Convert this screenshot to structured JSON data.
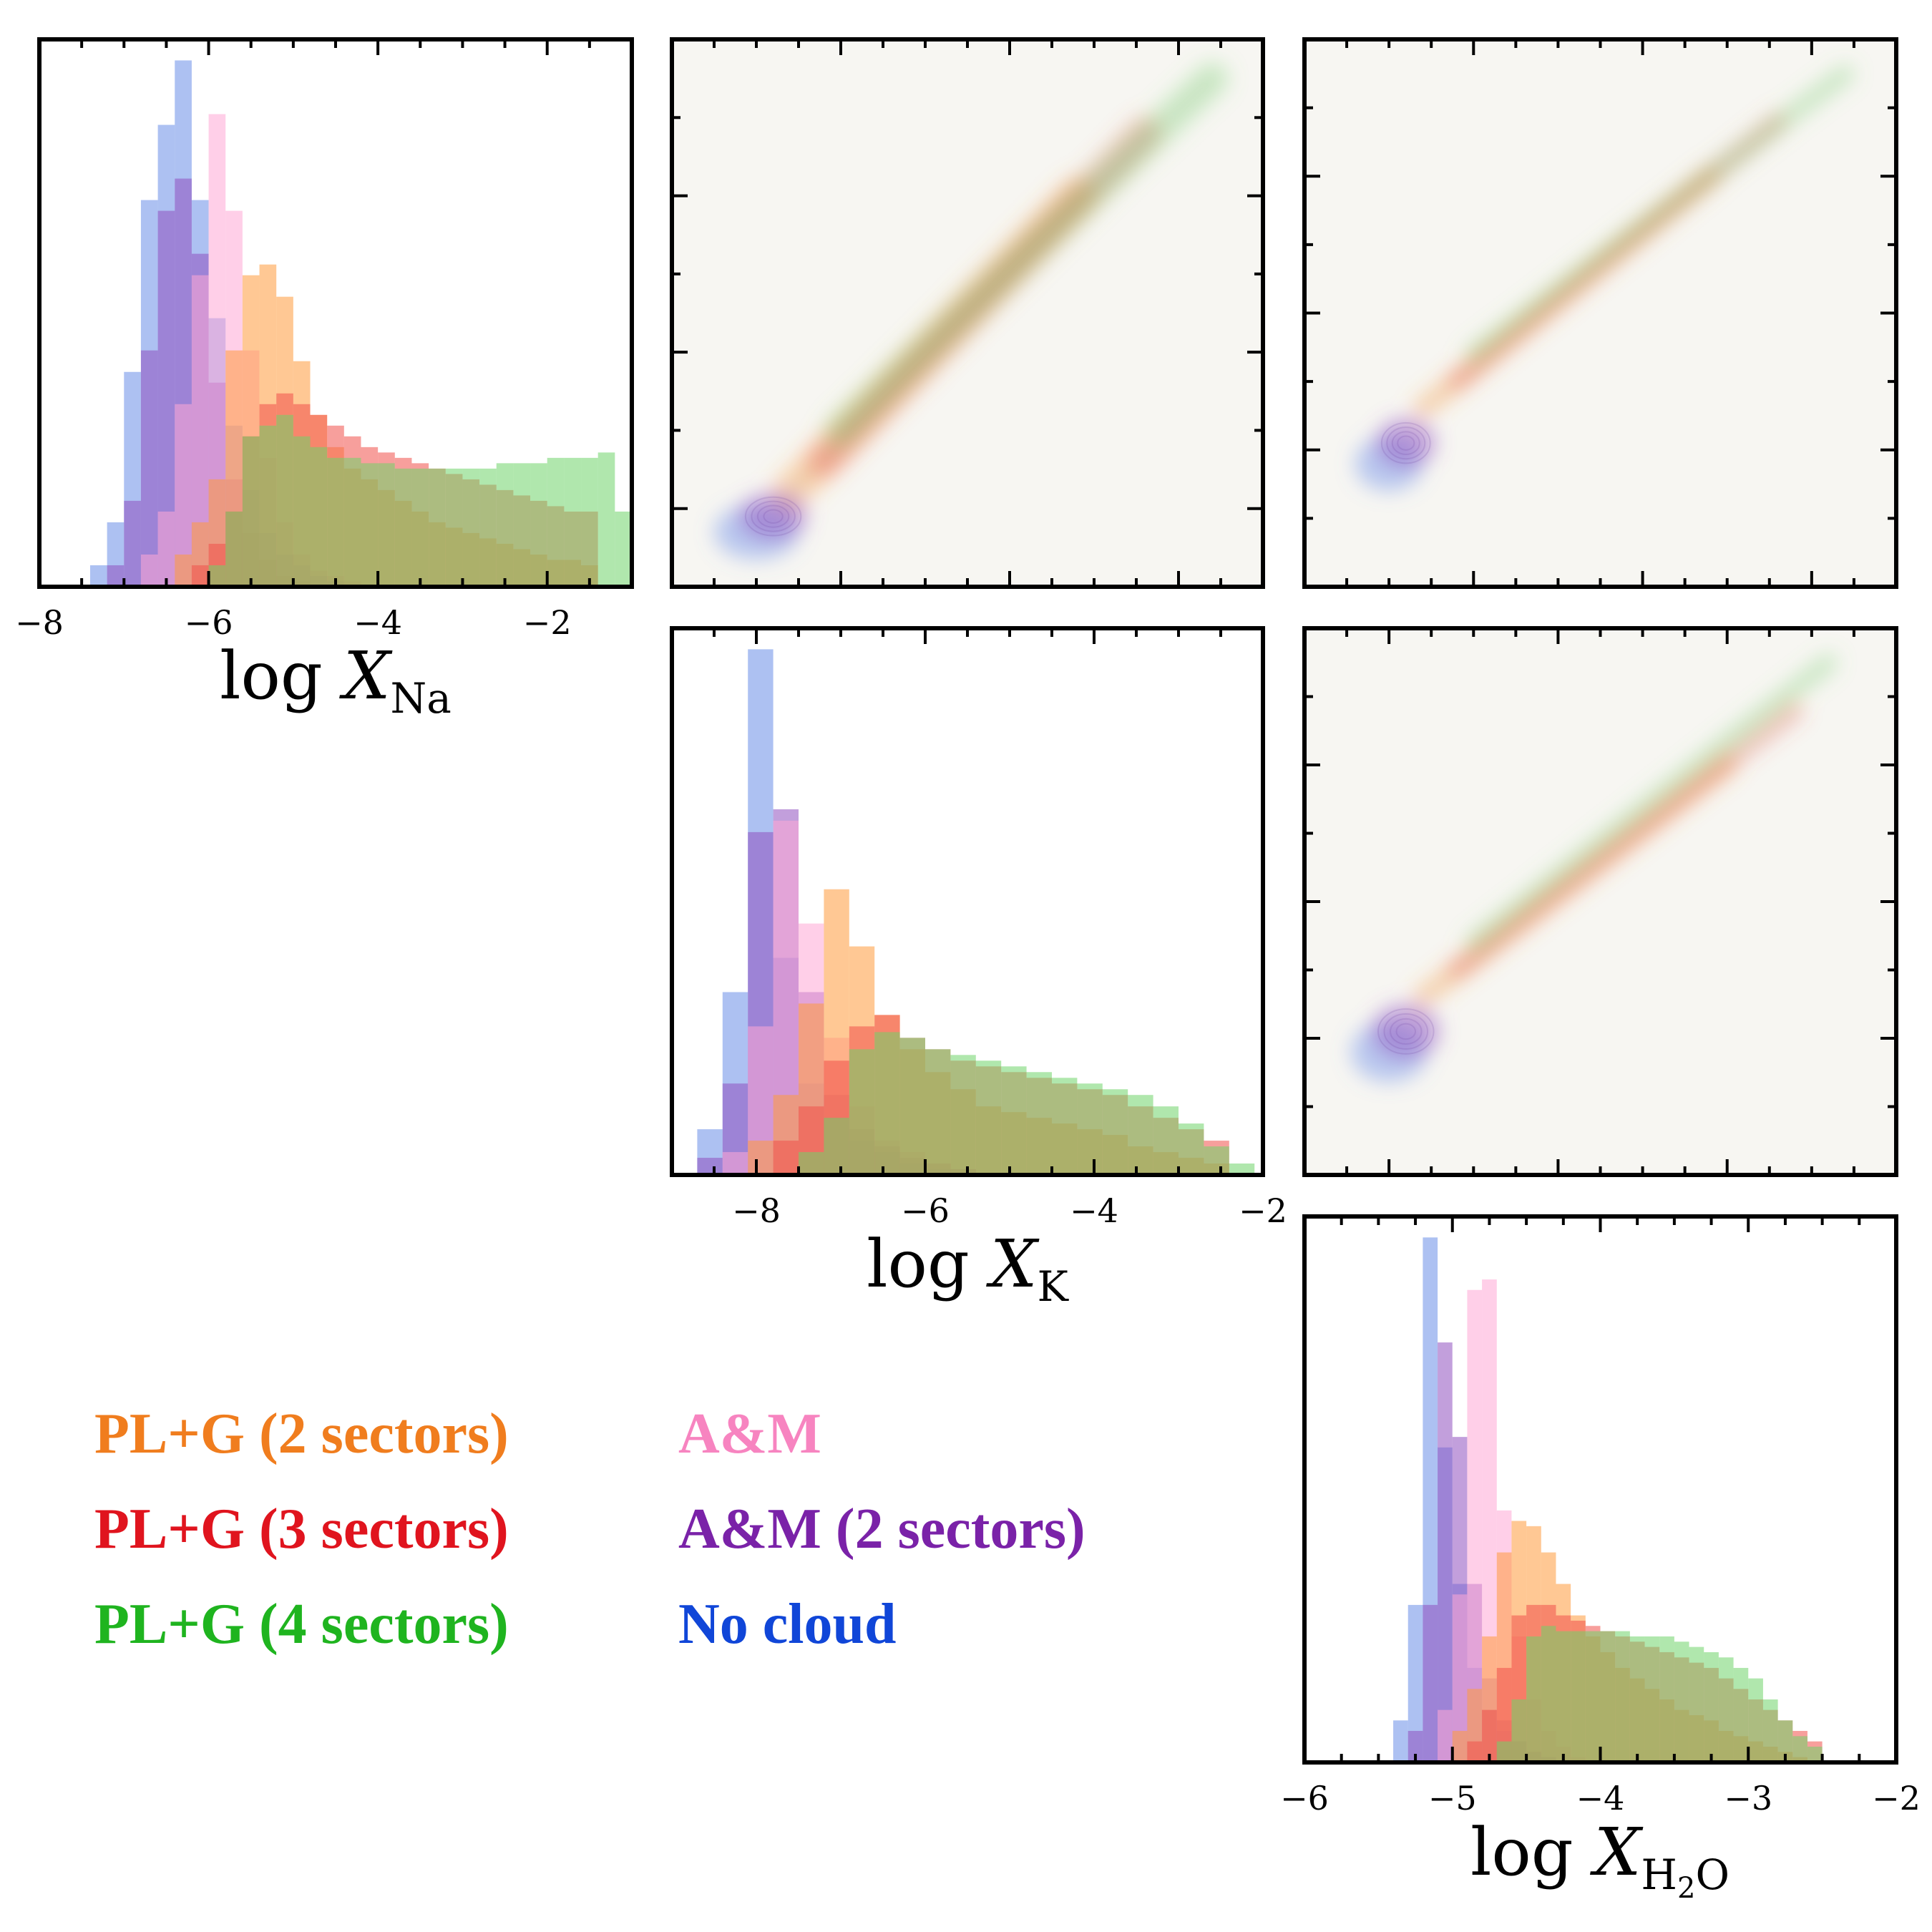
{
  "colors": {
    "pl_g_2": "#ff9a3c",
    "pl_g_3": "#f0504a",
    "pl_g_4": "#6fd46a",
    "am": "#ffa8d6",
    "am_2": "#9050c0",
    "no_cloud": "#6a8ee8",
    "legend_pl_g_2": "#f07d1e",
    "legend_pl_g_3": "#e0141e",
    "legend_pl_g_4": "#1fb41f",
    "legend_am": "#f784c0",
    "legend_am_2": "#7a22a8",
    "legend_no_cloud": "#1046d8",
    "panel_bg": "#f7f6f2"
  },
  "legend": [
    {
      "key": "pl_g_2",
      "label": "PL+G (2 sectors)"
    },
    {
      "key": "pl_g_3",
      "label": "PL+G (3 sectors)"
    },
    {
      "key": "pl_g_4",
      "label": "PL+G (4 sectors)"
    },
    {
      "key": "am",
      "label": "A&M"
    },
    {
      "key": "am_2",
      "label": "A&M (2 sectors)"
    },
    {
      "key": "no_cloud",
      "label": "No cloud"
    }
  ],
  "axis_labels": {
    "na": {
      "prefix": "log ",
      "var": "X",
      "sub": "Na"
    },
    "k": {
      "prefix": "log ",
      "var": "X",
      "sub": "K"
    },
    "h2o": {
      "prefix": "log ",
      "var": "X",
      "sub_a": "H",
      "sub_b": "2",
      "sub_c": "O"
    }
  },
  "chart_data": [
    {
      "type": "histogram",
      "id": "na",
      "xlabel": "log X_Na",
      "xlim": [
        -8.0,
        -1.0
      ],
      "xticks": [
        -8,
        -6,
        -4,
        -2
      ],
      "xtick_labels": [
        "−8",
        "−6",
        "−4",
        "−2"
      ],
      "series": [
        {
          "key": "no_cloud",
          "x0": -7.4,
          "width": 0.2,
          "values": [
            4,
            12,
            40,
            72,
            86,
            98,
            72,
            50,
            30,
            18,
            10,
            6,
            4,
            2,
            1
          ]
        },
        {
          "key": "am_2",
          "x0": -7.2,
          "width": 0.2,
          "values": [
            4,
            16,
            44,
            70,
            76,
            62,
            38,
            20,
            10,
            5,
            2,
            1
          ]
        },
        {
          "key": "am",
          "x0": -6.8,
          "width": 0.2,
          "values": [
            6,
            14,
            34,
            58,
            88,
            70,
            44,
            24,
            12,
            6,
            3,
            2,
            1
          ]
        },
        {
          "key": "pl_g_2",
          "x0": -6.4,
          "width": 0.2,
          "values": [
            6,
            12,
            20,
            44,
            58,
            60,
            54,
            42,
            32,
            26,
            22,
            20,
            18,
            16,
            14,
            12,
            11,
            10,
            9,
            8,
            7,
            6,
            5,
            5,
            4
          ]
        },
        {
          "key": "pl_g_3",
          "x0": -6.2,
          "width": 0.2,
          "values": [
            4,
            8,
            14,
            28,
            34,
            36,
            34,
            32,
            30,
            28,
            26,
            25,
            24,
            23,
            22,
            21,
            20,
            19,
            18,
            17,
            16,
            15,
            14,
            14
          ]
        },
        {
          "key": "pl_g_4",
          "x0": -6.0,
          "width": 0.2,
          "values": [
            4,
            14,
            28,
            30,
            32,
            28,
            26,
            24,
            24,
            23,
            23,
            22,
            22,
            22,
            22,
            22,
            22,
            23,
            23,
            23,
            24,
            24,
            24,
            25,
            14
          ]
        }
      ]
    },
    {
      "type": "histogram",
      "id": "k",
      "xlabel": "log X_K",
      "xlim": [
        -9.0,
        -2.0
      ],
      "xticks": [
        -8,
        -6,
        -4,
        -2
      ],
      "xtick_labels": [
        "−8",
        "−6",
        "−4",
        "−2"
      ],
      "series": [
        {
          "key": "no_cloud",
          "x0": -8.7,
          "width": 0.3,
          "values": [
            8,
            32,
            92,
            38,
            16,
            10,
            6,
            4,
            2,
            1,
            1
          ]
        },
        {
          "key": "am_2",
          "x0": -8.7,
          "width": 0.3,
          "values": [
            3,
            16,
            60,
            64,
            32,
            14,
            8,
            5,
            3,
            2,
            1
          ]
        },
        {
          "key": "am",
          "x0": -8.4,
          "width": 0.3,
          "values": [
            4,
            26,
            62,
            44,
            24,
            12,
            6,
            4,
            2,
            1
          ]
        },
        {
          "key": "pl_g_2",
          "x0": -8.1,
          "width": 0.3,
          "values": [
            6,
            14,
            30,
            50,
            40,
            28,
            22,
            18,
            15,
            12,
            11,
            10,
            9,
            8,
            7,
            5,
            4,
            3,
            2
          ]
        },
        {
          "key": "pl_g_3",
          "x0": -7.8,
          "width": 0.3,
          "values": [
            6,
            12,
            20,
            26,
            28,
            24,
            22,
            20,
            19,
            18,
            17,
            16,
            15,
            14,
            12,
            10,
            8,
            6
          ]
        },
        {
          "key": "pl_g_4",
          "x0": -7.5,
          "width": 0.3,
          "values": [
            4,
            10,
            22,
            25,
            24,
            22,
            21,
            20,
            19,
            18,
            17,
            16,
            15,
            14,
            12,
            9,
            5,
            2
          ]
        }
      ]
    },
    {
      "type": "histogram",
      "id": "h2o",
      "xlabel": "log X_H2O",
      "xlim": [
        -6.0,
        -2.0
      ],
      "xticks": [
        -6,
        -5,
        -4,
        -3,
        -2
      ],
      "xtick_labels": [
        "−6",
        "−5",
        "−4",
        "−3",
        "−2"
      ],
      "series": [
        {
          "key": "no_cloud",
          "x0": -5.4,
          "width": 0.1,
          "values": [
            8,
            30,
            100,
            60,
            34,
            18,
            10,
            6,
            4,
            2,
            1
          ]
        },
        {
          "key": "am_2",
          "x0": -5.3,
          "width": 0.1,
          "values": [
            6,
            30,
            80,
            62,
            34,
            16,
            8,
            4,
            2,
            1
          ]
        },
        {
          "key": "am",
          "x0": -5.1,
          "width": 0.1,
          "values": [
            10,
            32,
            90,
            92,
            48,
            24,
            12,
            6,
            3,
            1
          ]
        },
        {
          "key": "pl_g_2",
          "x0": -5.0,
          "width": 0.1,
          "values": [
            6,
            14,
            24,
            40,
            46,
            45,
            40,
            34,
            28,
            24,
            21,
            18,
            16,
            14,
            12,
            10,
            9,
            8,
            6,
            5,
            4,
            3,
            2,
            1
          ]
        },
        {
          "key": "pl_g_3",
          "x0": -4.9,
          "width": 0.1,
          "values": [
            4,
            10,
            18,
            28,
            30,
            30,
            28,
            27,
            26,
            25,
            24,
            23,
            22,
            21,
            20,
            19,
            18,
            16,
            14,
            12,
            10,
            8,
            6,
            4
          ]
        },
        {
          "key": "pl_g_4",
          "x0": -4.7,
          "width": 0.1,
          "values": [
            4,
            12,
            24,
            26,
            25,
            25,
            25,
            25,
            25,
            24,
            24,
            24,
            23,
            22,
            21,
            20,
            18,
            16,
            12,
            8,
            5,
            3
          ]
        }
      ]
    },
    {
      "type": "contour",
      "id": "na_k",
      "description_x": "log X_Na",
      "description_y": "log X_K",
      "xlim": [
        -8.0,
        -1.0
      ],
      "ylim": [
        -9.0,
        -2.0
      ],
      "blobs": [
        {
          "key": "no_cloud",
          "x": -7.0,
          "y": -8.3,
          "sx": 0.5,
          "sy": 0.35,
          "a": 0.45
        },
        {
          "key": "am_2",
          "x": -6.8,
          "y": -8.1,
          "sx": 0.4,
          "sy": 0.3,
          "a": 0.5
        }
      ],
      "ridges": [
        {
          "key": "pl_g_2",
          "x1": -6.6,
          "y1": -7.8,
          "x2": -3.2,
          "y2": -4.0,
          "w": 0.45,
          "a": 0.35
        },
        {
          "key": "pl_g_3",
          "x1": -6.2,
          "y1": -7.4,
          "x2": -2.4,
          "y2": -3.2,
          "w": 0.4,
          "a": 0.3
        },
        {
          "key": "pl_g_4",
          "x1": -6.0,
          "y1": -7.0,
          "x2": -1.6,
          "y2": -2.5,
          "w": 0.4,
          "a": 0.3
        }
      ]
    },
    {
      "type": "contour",
      "id": "na_h2o",
      "description_x": "log X_Na",
      "description_y": "log X_H2O",
      "xlim": [
        -8.0,
        -1.0
      ],
      "ylim": [
        -6.0,
        -2.0
      ],
      "blobs": [
        {
          "key": "no_cloud",
          "x": -7.0,
          "y": -5.1,
          "sx": 0.4,
          "sy": 0.2,
          "a": 0.45
        },
        {
          "key": "am_2",
          "x": -6.8,
          "y": -4.95,
          "sx": 0.35,
          "sy": 0.18,
          "a": 0.5
        }
      ],
      "ridges": [
        {
          "key": "pl_g_2",
          "x1": -6.6,
          "y1": -4.7,
          "x2": -3.2,
          "y2": -3.0,
          "w": 0.25,
          "a": 0.35
        },
        {
          "key": "pl_g_3",
          "x1": -6.2,
          "y1": -4.5,
          "x2": -2.4,
          "y2": -2.6,
          "w": 0.22,
          "a": 0.3
        },
        {
          "key": "pl_g_4",
          "x1": -6.0,
          "y1": -4.3,
          "x2": -1.6,
          "y2": -2.25,
          "w": 0.22,
          "a": 0.3
        }
      ]
    },
    {
      "type": "contour",
      "id": "k_h2o",
      "description_x": "log X_K",
      "description_y": "log X_H2O",
      "xlim": [
        -9.0,
        -2.0
      ],
      "ylim": [
        -6.0,
        -2.0
      ],
      "blobs": [
        {
          "key": "no_cloud",
          "x": -8.0,
          "y": -5.1,
          "sx": 0.45,
          "sy": 0.22,
          "a": 0.45
        },
        {
          "key": "am_2",
          "x": -7.8,
          "y": -4.95,
          "sx": 0.4,
          "sy": 0.2,
          "a": 0.5
        }
      ],
      "ridges": [
        {
          "key": "pl_g_2",
          "x1": -7.6,
          "y1": -4.7,
          "x2": -4.0,
          "y2": -3.0,
          "w": 0.25,
          "a": 0.35
        },
        {
          "key": "pl_g_3",
          "x1": -7.2,
          "y1": -4.5,
          "x2": -3.2,
          "y2": -2.6,
          "w": 0.22,
          "a": 0.3
        },
        {
          "key": "pl_g_4",
          "x1": -7.0,
          "y1": -4.3,
          "x2": -2.8,
          "y2": -2.25,
          "w": 0.22,
          "a": 0.3
        }
      ]
    }
  ]
}
